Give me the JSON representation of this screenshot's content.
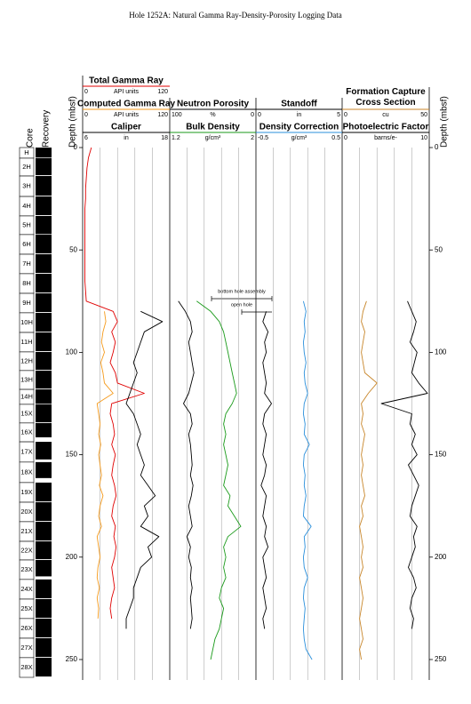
{
  "chart_data": {
    "type": "well_log",
    "title": "Hole 1252A: Natural Gamma Ray-Density-Porosity Logging Data",
    "y_label": "Depth (mbsf)",
    "core_label": "Core",
    "recovery_label": "Recovery",
    "ylim": [
      0,
      260
    ],
    "yticks": [
      0,
      50,
      100,
      150,
      200,
      250
    ],
    "depth": [
      0,
      5,
      10,
      15,
      20,
      25,
      30,
      35,
      40,
      45,
      50,
      55,
      60,
      65,
      70,
      75,
      80,
      85,
      90,
      95,
      100,
      105,
      110,
      115,
      120,
      125,
      130,
      135,
      140,
      145,
      150,
      155,
      160,
      165,
      170,
      175,
      180,
      185,
      190,
      195,
      200,
      205,
      210,
      215,
      220,
      225,
      230,
      235,
      240,
      245,
      250
    ],
    "series": [
      {
        "name": "Total Gamma Ray",
        "color": "#e00000",
        "unit": "API units",
        "xlim": [
          0,
          120
        ],
        "values": [
          12,
          8,
          6,
          5,
          4,
          4,
          3,
          3,
          3,
          3,
          3,
          3,
          3,
          3,
          4,
          5,
          42,
          48,
          40,
          45,
          42,
          38,
          45,
          48,
          85,
          40,
          38,
          42,
          44,
          40,
          45,
          42,
          40,
          44,
          46,
          42,
          40,
          45,
          43,
          46,
          44,
          40,
          42,
          44,
          40,
          38,
          40,
          null,
          null,
          null,
          null
        ]
      },
      {
        "name": "Computed Gamma Ray",
        "color": "#f59a1b",
        "unit": "API units",
        "xlim": [
          0,
          120
        ],
        "values": [
          null,
          null,
          null,
          null,
          null,
          null,
          null,
          null,
          null,
          null,
          null,
          null,
          null,
          null,
          null,
          null,
          30,
          32,
          28,
          26,
          30,
          25,
          28,
          30,
          42,
          20,
          22,
          24,
          22,
          25,
          22,
          24,
          26,
          23,
          28,
          24,
          22,
          26,
          20,
          22,
          24,
          21,
          20,
          23,
          20,
          22,
          21,
          null,
          null,
          null,
          null
        ]
      },
      {
        "name": "Caliper",
        "color": "#000000",
        "unit": "in",
        "xlim": [
          6,
          18
        ],
        "values": [
          null,
          null,
          null,
          null,
          null,
          null,
          null,
          null,
          null,
          null,
          null,
          null,
          null,
          null,
          null,
          null,
          14,
          17,
          14.5,
          14,
          13.5,
          13,
          13.5,
          13,
          12.5,
          12,
          13,
          13.5,
          14,
          13.5,
          14,
          14.5,
          14,
          15,
          16,
          14.5,
          15,
          14,
          16.5,
          15,
          15.5,
          14,
          13.5,
          13,
          13,
          12.5,
          12,
          12,
          null,
          null,
          null
        ]
      },
      {
        "name": "Neutron Porosity",
        "color": "#000000",
        "unit": "%",
        "xlim": [
          100,
          0
        ],
        "values": [
          null,
          null,
          null,
          null,
          null,
          null,
          null,
          null,
          null,
          null,
          null,
          null,
          null,
          null,
          null,
          90,
          82,
          76,
          74,
          78,
          76,
          74,
          72,
          75,
          78,
          84,
          76,
          74,
          78,
          76,
          75,
          74,
          76,
          73,
          75,
          78,
          76,
          74,
          80,
          76,
          78,
          75,
          76,
          74,
          76,
          75,
          74,
          76,
          null,
          null,
          null
        ]
      },
      {
        "name": "Bulk Density",
        "color": "#1a9a1a",
        "unit": "g/cm³",
        "xlim": [
          1.2,
          2
        ],
        "values": [
          null,
          null,
          null,
          null,
          null,
          null,
          null,
          null,
          null,
          null,
          null,
          null,
          null,
          null,
          null,
          1.45,
          1.58,
          1.66,
          1.7,
          1.72,
          1.74,
          1.76,
          1.78,
          1.8,
          1.82,
          1.78,
          1.72,
          1.7,
          1.72,
          1.7,
          1.72,
          1.74,
          1.72,
          1.7,
          1.76,
          1.74,
          1.8,
          1.86,
          1.74,
          1.7,
          1.72,
          1.7,
          1.72,
          1.68,
          1.66,
          1.7,
          1.68,
          1.66,
          1.62,
          1.6,
          1.58
        ]
      },
      {
        "name": "Standoff",
        "color": "#000000",
        "unit": "in",
        "xlim": [
          0,
          5
        ],
        "values": [
          null,
          null,
          null,
          null,
          null,
          null,
          null,
          null,
          null,
          null,
          null,
          null,
          null,
          null,
          null,
          null,
          0.6,
          0.4,
          0.7,
          0.5,
          0.6,
          0.4,
          0.5,
          0.6,
          0.5,
          0.9,
          0.5,
          0.4,
          0.6,
          0.5,
          0.4,
          0.6,
          0.5,
          0.3,
          0.6,
          0.5,
          0.4,
          0.6,
          0.5,
          0.7,
          0.4,
          0.5,
          0.6,
          0.4,
          0.5,
          0.6,
          0.4,
          0.5,
          null,
          null,
          null
        ]
      },
      {
        "name": "Density Correction",
        "color": "#2a8fdb",
        "unit": "g/cm³",
        "xlim": [
          -0.5,
          0.5
        ],
        "values": [
          null,
          null,
          null,
          null,
          null,
          null,
          null,
          null,
          null,
          null,
          null,
          null,
          null,
          null,
          null,
          0.05,
          0.08,
          0.06,
          0.07,
          0.05,
          0.06,
          0.08,
          0.06,
          0.07,
          0.1,
          0.06,
          0.05,
          0.07,
          0.06,
          0.12,
          0.06,
          0.05,
          0.07,
          0.06,
          0.08,
          0.06,
          0.05,
          0.14,
          0.06,
          0.07,
          0.05,
          0.06,
          0.1,
          0.06,
          0.05,
          0.07,
          0.06,
          0.05,
          0.06,
          0.08,
          0.15
        ]
      },
      {
        "name": "Formation Capture Cross Section",
        "color": "#c8862a",
        "unit": "cu",
        "xlim": [
          0,
          50
        ],
        "values": [
          null,
          null,
          null,
          null,
          null,
          null,
          null,
          null,
          null,
          null,
          null,
          null,
          null,
          null,
          null,
          14,
          12,
          11,
          13,
          12,
          11,
          12,
          13,
          20,
          15,
          11,
          12,
          11,
          13,
          12,
          11,
          12,
          11,
          12,
          13,
          11,
          12,
          10,
          11,
          12,
          11,
          12,
          10,
          11,
          12,
          11,
          10,
          11,
          12,
          10,
          11
        ]
      },
      {
        "name": "Photoelectric Factor",
        "color": "#000000",
        "unit": "barns/e-",
        "xlim": [
          0,
          10
        ],
        "values": [
          null,
          null,
          null,
          null,
          null,
          null,
          null,
          null,
          null,
          null,
          null,
          null,
          null,
          null,
          null,
          7.5,
          8,
          8.5,
          8.2,
          7.8,
          8.6,
          8.3,
          8,
          8.8,
          9.8,
          4.5,
          8,
          7.8,
          8.4,
          8,
          8.6,
          7.6,
          8.2,
          8.8,
          8.4,
          8,
          7.8,
          8.6,
          8.2,
          8.4,
          8,
          7.6,
          8.2,
          8.5,
          8,
          7.8,
          8.2,
          8,
          null,
          null,
          null
        ]
      }
    ],
    "annotations": [
      "bottom hole assembly",
      "open hole"
    ],
    "cores": {
      "names": [
        "H",
        "2H",
        "3H",
        "4H",
        "5H",
        "6H",
        "7H",
        "8H",
        "9H",
        "10H",
        "11H",
        "12H",
        "13H",
        "14H",
        "15X",
        "16X",
        "17X",
        "18X",
        "19X",
        "20X",
        "21X",
        "22X",
        "23X",
        "24X",
        "25X",
        "26X",
        "27X",
        "28X"
      ],
      "top": [
        0,
        5.2,
        13.9,
        23.9,
        33.4,
        42.5,
        52.1,
        61.6,
        71.2,
        80.7,
        90.3,
        99.8,
        108.9,
        118.1,
        125.4,
        134.5,
        143.7,
        153.6,
        163.6,
        173.2,
        182.7,
        192.3,
        201.4,
        210.9,
        220.5,
        230,
        239.6,
        249.1
      ],
      "bottom": [
        5.2,
        13.9,
        23.9,
        33.4,
        42.5,
        52.1,
        61.6,
        71.2,
        80.7,
        90.3,
        99.8,
        108.9,
        118.1,
        125.4,
        134.5,
        143.7,
        153.6,
        163.6,
        173.2,
        182.7,
        192.3,
        201.4,
        210.9,
        220.5,
        230,
        239.6,
        249.1,
        258.7
      ],
      "recovered": [
        4.9,
        8.3,
        9.6,
        9.1,
        8.8,
        9.2,
        9.1,
        9.2,
        9.1,
        9.2,
        9.1,
        8.7,
        8.8,
        7,
        8.7,
        7,
        8.6,
        7.8,
        9.2,
        9.1,
        9.2,
        8.7,
        8,
        9.2,
        9.1,
        9.2,
        9.1,
        9.2
      ]
    }
  }
}
